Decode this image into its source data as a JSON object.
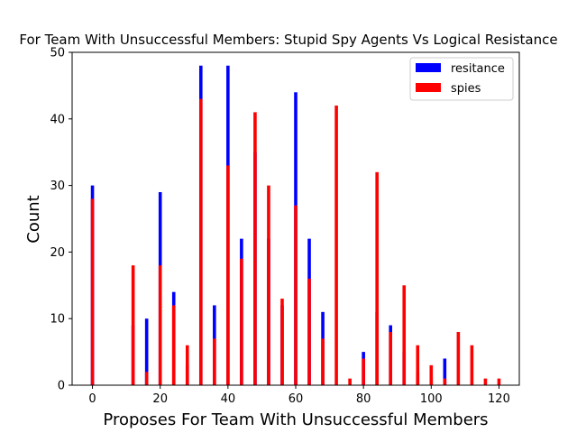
{
  "chart_data": {
    "type": "bar",
    "title": "For Team With Unsuccessful Members: Stupid Spy Agents Vs Logical Resistance",
    "xlabel": "Proposes For Team With Unsuccessful Members",
    "ylabel": "Count",
    "xlim": [
      -6,
      126
    ],
    "ylim": [
      0,
      50
    ],
    "xticks": [
      0,
      20,
      40,
      60,
      80,
      100,
      120
    ],
    "yticks": [
      0,
      10,
      20,
      30,
      40,
      50
    ],
    "legend_position": "top-right",
    "series": [
      {
        "name": "resitance",
        "color": "#0000ff",
        "points": [
          {
            "x": 0,
            "y": 30
          },
          {
            "x": 12,
            "y": 9
          },
          {
            "x": 16,
            "y": 10
          },
          {
            "x": 20,
            "y": 29
          },
          {
            "x": 24,
            "y": 14
          },
          {
            "x": 28,
            "y": 3
          },
          {
            "x": 32,
            "y": 48
          },
          {
            "x": 36,
            "y": 12
          },
          {
            "x": 40,
            "y": 48
          },
          {
            "x": 44,
            "y": 22
          },
          {
            "x": 48,
            "y": 35
          },
          {
            "x": 52,
            "y": 22
          },
          {
            "x": 56,
            "y": 12
          },
          {
            "x": 60,
            "y": 44
          },
          {
            "x": 64,
            "y": 22
          },
          {
            "x": 68,
            "y": 11
          },
          {
            "x": 80,
            "y": 5
          },
          {
            "x": 84,
            "y": 11
          },
          {
            "x": 88,
            "y": 9
          },
          {
            "x": 92,
            "y": 5
          },
          {
            "x": 96,
            "y": 2
          },
          {
            "x": 100,
            "y": 1
          },
          {
            "x": 104,
            "y": 4
          },
          {
            "x": 108,
            "y": 0
          }
        ]
      },
      {
        "name": "spies",
        "color": "#ff0000",
        "points": [
          {
            "x": 0,
            "y": 28
          },
          {
            "x": 12,
            "y": 18
          },
          {
            "x": 16,
            "y": 2
          },
          {
            "x": 20,
            "y": 18
          },
          {
            "x": 24,
            "y": 12
          },
          {
            "x": 28,
            "y": 6
          },
          {
            "x": 32,
            "y": 43
          },
          {
            "x": 36,
            "y": 7
          },
          {
            "x": 40,
            "y": 33
          },
          {
            "x": 44,
            "y": 19
          },
          {
            "x": 48,
            "y": 41
          },
          {
            "x": 52,
            "y": 30
          },
          {
            "x": 56,
            "y": 13
          },
          {
            "x": 60,
            "y": 27
          },
          {
            "x": 64,
            "y": 16
          },
          {
            "x": 68,
            "y": 7
          },
          {
            "x": 72,
            "y": 42
          },
          {
            "x": 76,
            "y": 1
          },
          {
            "x": 80,
            "y": 4
          },
          {
            "x": 84,
            "y": 32
          },
          {
            "x": 88,
            "y": 8
          },
          {
            "x": 92,
            "y": 15
          },
          {
            "x": 96,
            "y": 6
          },
          {
            "x": 100,
            "y": 3
          },
          {
            "x": 104,
            "y": 1
          },
          {
            "x": 108,
            "y": 8
          },
          {
            "x": 112,
            "y": 6
          },
          {
            "x": 116,
            "y": 1
          },
          {
            "x": 120,
            "y": 1
          }
        ]
      }
    ]
  }
}
